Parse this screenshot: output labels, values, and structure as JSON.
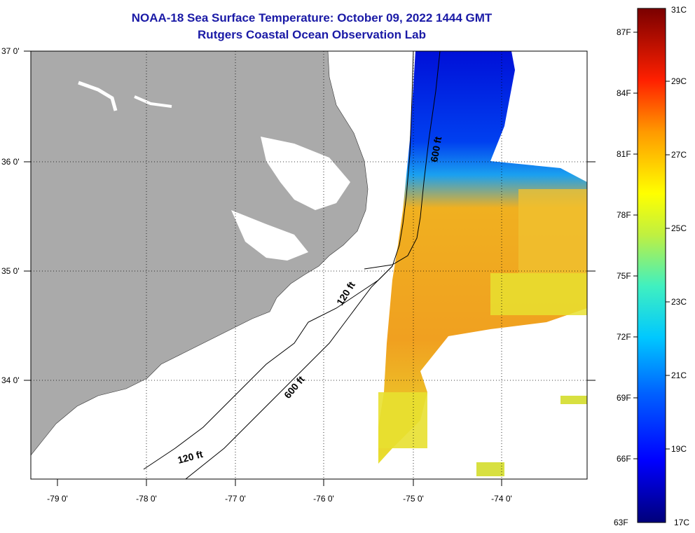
{
  "title": {
    "line1": "NOAA-18 Sea Surface Temperature:  October 09, 2022 1444 GMT",
    "line2": "Rutgers Coastal Ocean Observation Lab"
  },
  "map": {
    "lon_ticks": [
      "-79 0'",
      "-78 0'",
      "-77 0'",
      "-76 0'",
      "-75 0'",
      "-74 0'"
    ],
    "lat_ticks": [
      "37 0'",
      "36 0'",
      "35 0'",
      "34 0'"
    ],
    "contour_labels": {
      "c600_north": "600 ft",
      "c120_mid": "120 ft",
      "c600_south": "600 ft",
      "c120_south": "120 ft"
    },
    "land_color": "#aaaaaa"
  },
  "colorbar": {
    "fahrenheit": [
      "87F",
      "84F",
      "81F",
      "78F",
      "75F",
      "72F",
      "69F",
      "66F",
      "63F"
    ],
    "celsius": [
      "31C",
      "29C",
      "27C",
      "25C",
      "23C",
      "21C",
      "19C",
      "17C"
    ]
  }
}
